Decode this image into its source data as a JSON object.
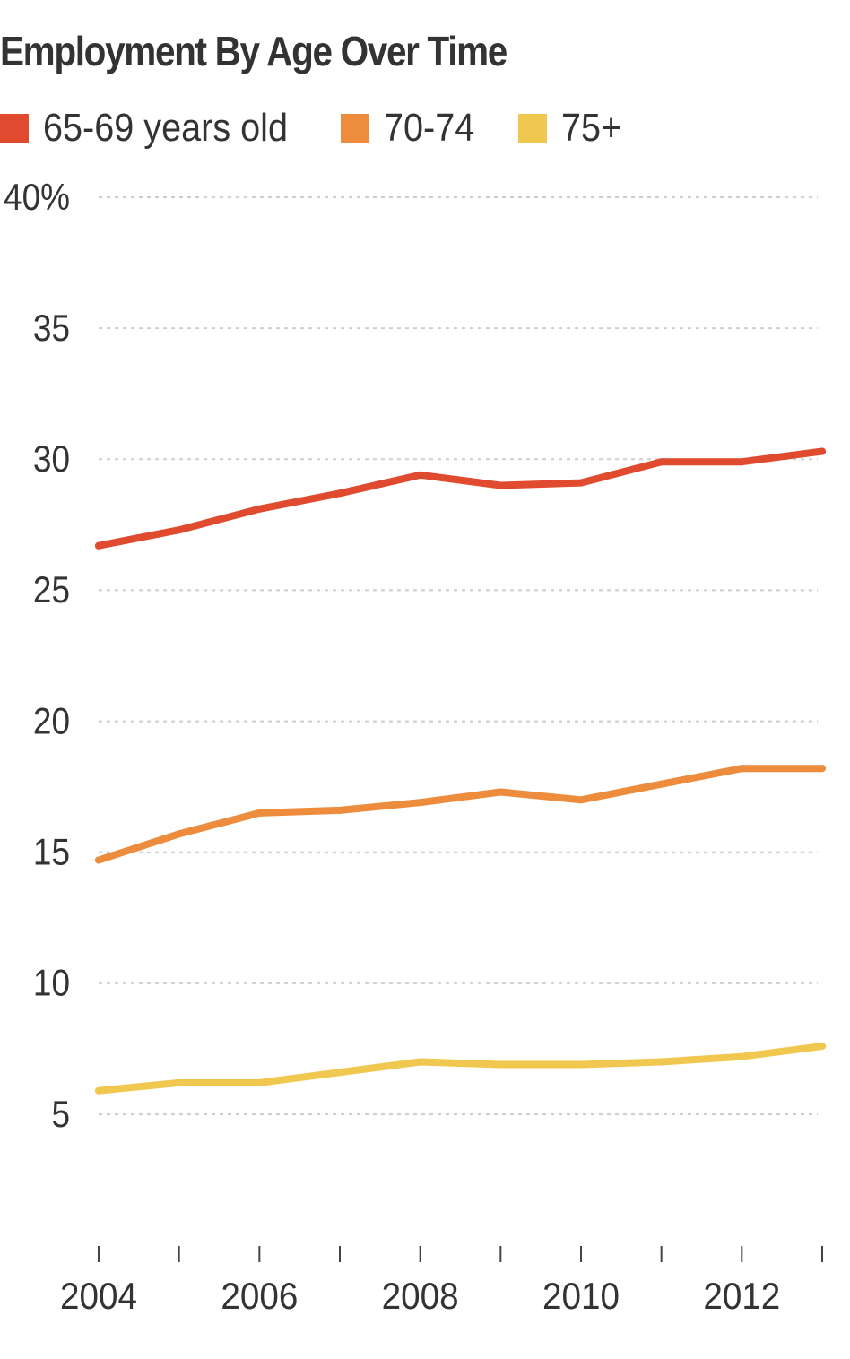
{
  "chart_data": {
    "type": "line",
    "title": "Employment By Age Over Time",
    "xlabel": "",
    "ylabel": "",
    "x": [
      2004,
      2005,
      2006,
      2007,
      2008,
      2009,
      2010,
      2011,
      2012,
      2013
    ],
    "xticks": [
      2004,
      2005,
      2006,
      2007,
      2008,
      2009,
      2010,
      2011,
      2012,
      2013
    ],
    "xtick_labels": [
      "2004",
      "",
      "2006",
      "",
      "2008",
      "",
      "2010",
      "",
      "2012",
      ""
    ],
    "yticks": [
      5,
      10,
      15,
      20,
      25,
      30,
      35,
      40
    ],
    "ytick_labels": [
      "5",
      "10",
      "15",
      "20",
      "25",
      "30",
      "35",
      "40%"
    ],
    "ylim": [
      0,
      40
    ],
    "xlim": [
      2004,
      2013
    ],
    "grid": "horizontal dotted",
    "legend_placement": "top-left",
    "series": [
      {
        "name": "65-69 years old",
        "color": "#e04a2f",
        "values": [
          26.7,
          27.3,
          28.1,
          28.7,
          29.4,
          29.0,
          29.1,
          29.9,
          29.9,
          30.3
        ]
      },
      {
        "name": "70-74",
        "color": "#ec8c3c",
        "values": [
          14.7,
          15.7,
          16.5,
          16.6,
          16.9,
          17.3,
          17.0,
          17.6,
          18.2,
          18.2
        ]
      },
      {
        "name": "75+",
        "color": "#f1c84f",
        "values": [
          5.9,
          6.2,
          6.2,
          6.6,
          7.0,
          6.9,
          6.9,
          7.0,
          7.2,
          7.6
        ]
      }
    ]
  }
}
